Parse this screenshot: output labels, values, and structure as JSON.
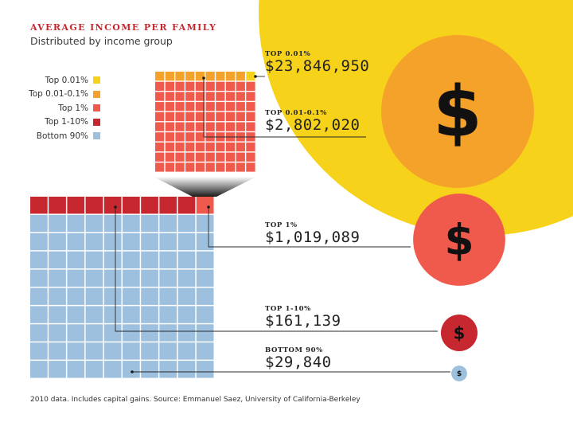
{
  "title": "AVERAGE INCOME PER FAMILY",
  "subtitle": "Distributed by income group",
  "source": "2010 data. Includes capital gains. Source: Emmanuel Saez, University of California-Berkeley",
  "currency_symbol": "$",
  "legend": [
    {
      "label": "Top 0.01%",
      "color": "#f7d21b"
    },
    {
      "label": "Top 0.01-0.1%",
      "color": "#f5a22a"
    },
    {
      "label": "Top 1%",
      "color": "#ef5a4d"
    },
    {
      "label": "Top 1-10%",
      "color": "#c7282f"
    },
    {
      "label": "Bottom 90%",
      "color": "#9cc0dd"
    }
  ],
  "groups": [
    {
      "category": "TOP 0.01%",
      "value_text": "$23,846,950"
    },
    {
      "category": "TOP 0.01-0.1%",
      "value_text": "$2,802,020"
    },
    {
      "category": "TOP 1%",
      "value_text": "$1,019,089"
    },
    {
      "category": "TOP 1-10%",
      "value_text": "$161,139"
    },
    {
      "category": "BOTTOM 90%",
      "value_text": "$29,840"
    }
  ],
  "chart_data": {
    "type": "proportional circles with unit grids",
    "title": "AVERAGE INCOME PER FAMILY",
    "subtitle": "Distributed by income group",
    "categories": [
      "Top 0.01%",
      "Top 0.01-0.1%",
      "Top 1%",
      "Top 1-10%",
      "Bottom 90%"
    ],
    "values": [
      23846950,
      2802020,
      1019089,
      161139,
      29840
    ],
    "unit": "USD",
    "grids": [
      {
        "name": "top 1% grid",
        "rows": 10,
        "cols": 10,
        "top_0_01_cells": 1,
        "top_0_01_0_1_cells": 9,
        "top_1_cells": 90
      },
      {
        "name": "all families grid",
        "rows": 10,
        "cols": 10,
        "top_1_cells": 1,
        "top_1_10_cells": 9,
        "bottom_90_cells": 90
      }
    ]
  }
}
